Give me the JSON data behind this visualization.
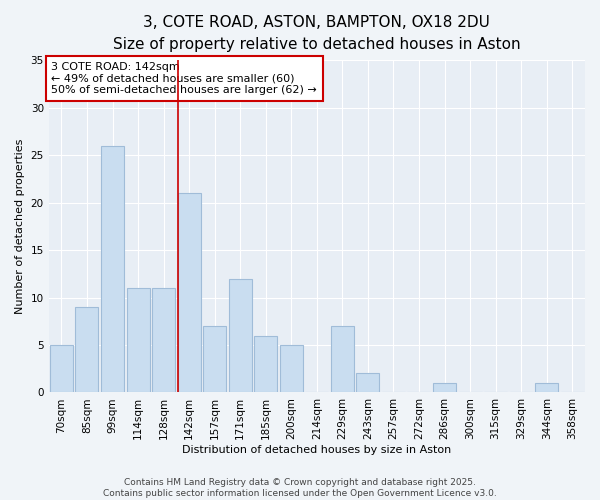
{
  "title1": "3, COTE ROAD, ASTON, BAMPTON, OX18 2DU",
  "title2": "Size of property relative to detached houses in Aston",
  "categories": [
    "70sqm",
    "85sqm",
    "99sqm",
    "114sqm",
    "128sqm",
    "142sqm",
    "157sqm",
    "171sqm",
    "185sqm",
    "200sqm",
    "214sqm",
    "229sqm",
    "243sqm",
    "257sqm",
    "272sqm",
    "286sqm",
    "300sqm",
    "315sqm",
    "329sqm",
    "344sqm",
    "358sqm"
  ],
  "values": [
    5,
    9,
    26,
    11,
    11,
    21,
    7,
    12,
    6,
    5,
    0,
    7,
    2,
    0,
    0,
    1,
    0,
    0,
    0,
    1,
    0
  ],
  "bar_color": "#c9ddf0",
  "bar_edge_color": "#a0bcd8",
  "highlight_index": 5,
  "vline_color": "#cc0000",
  "ylabel": "Number of detached properties",
  "xlabel": "Distribution of detached houses by size in Aston",
  "ylim": [
    0,
    35
  ],
  "yticks": [
    0,
    5,
    10,
    15,
    20,
    25,
    30,
    35
  ],
  "annotation_title": "3 COTE ROAD: 142sqm",
  "annotation_line1": "← 49% of detached houses are smaller (60)",
  "annotation_line2": "50% of semi-detached houses are larger (62) →",
  "annotation_box_color": "#ffffff",
  "annotation_box_edge": "#cc0000",
  "footer1": "Contains HM Land Registry data © Crown copyright and database right 2025.",
  "footer2": "Contains public sector information licensed under the Open Government Licence v3.0.",
  "bg_color": "#f0f4f8",
  "plot_bg_color": "#e8eef5",
  "grid_color": "#ffffff",
  "title_fontsize": 11,
  "subtitle_fontsize": 10,
  "axis_label_fontsize": 8,
  "tick_fontsize": 7.5,
  "annotation_fontsize": 8,
  "footer_fontsize": 6.5
}
